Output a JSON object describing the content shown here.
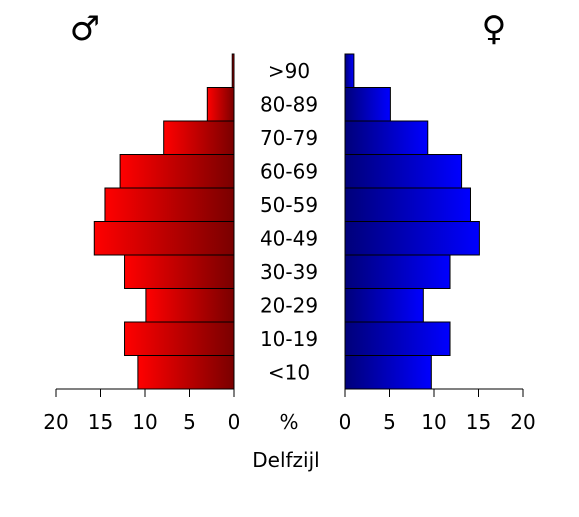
{
  "chart_data": {
    "type": "bar",
    "title": "Delfzijl",
    "male_symbol": "♂",
    "female_symbol": "♀",
    "unit_label": "%",
    "categories": [
      "<10",
      "10-19",
      "20-29",
      "30-39",
      "40-49",
      "50-59",
      "60-69",
      "70-79",
      "80-89",
      ">90"
    ],
    "series": [
      {
        "name": "♂",
        "side": "left",
        "values": [
          10.8,
          12.3,
          9.9,
          12.3,
          15.7,
          14.5,
          12.8,
          7.9,
          3.0,
          0.2
        ],
        "color_dark": "#7a0000",
        "color_light": "#ff0000"
      },
      {
        "name": "♀",
        "side": "right",
        "values": [
          9.7,
          11.8,
          8.8,
          11.8,
          15.1,
          14.1,
          13.1,
          9.3,
          5.1,
          1.0
        ],
        "color_dark": "#00007a",
        "color_light": "#0000ff"
      }
    ],
    "xlim": [
      0,
      20
    ],
    "xticks": [
      20,
      15,
      10,
      5,
      0
    ],
    "grid": false
  }
}
